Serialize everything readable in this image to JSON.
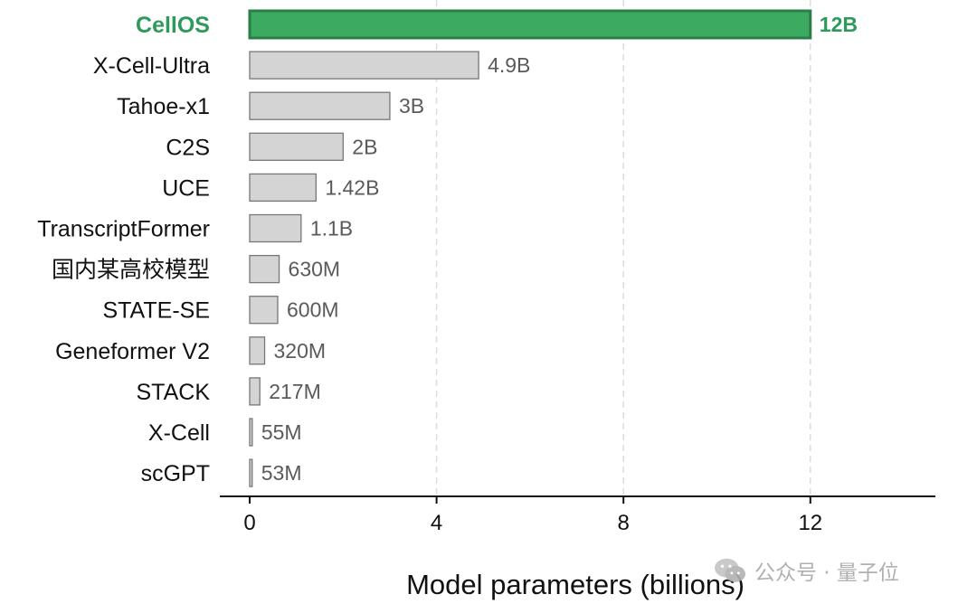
{
  "chart_data": {
    "type": "bar",
    "orientation": "horizontal",
    "categories": [
      "CellOS",
      "X-Cell-Ultra",
      "Tahoe-x1",
      "C2S",
      "UCE",
      "TranscriptFormer",
      "国内某高校模型",
      "STATE-SE",
      "Geneformer V2",
      "STACK",
      "X-Cell",
      "scGPT"
    ],
    "values": [
      12,
      4.9,
      3,
      2,
      1.42,
      1.1,
      0.63,
      0.6,
      0.32,
      0.217,
      0.055,
      0.053
    ],
    "value_labels": [
      "12B",
      "4.9B",
      "3B",
      "2B",
      "1.42B",
      "1.1B",
      "630M",
      "600M",
      "320M",
      "217M",
      "55M",
      "53M"
    ],
    "highlight_index": 0,
    "xlabel": "Model parameters (billions)",
    "ylabel": "",
    "xlim": [
      0,
      14.7
    ],
    "xticks": [
      0,
      4,
      8,
      12
    ],
    "grid": "vertical dashed",
    "colors": {
      "highlight_fill": "#3daa62",
      "highlight_edge": "#2a7d47",
      "highlight_text": "#2e9a5a",
      "bar_fill": "#d4d4d4",
      "bar_edge": "#777777",
      "grid": "#dddddd"
    }
  },
  "watermark": {
    "icon": "wechat-logo-icon",
    "text": "公众号 · 量子位"
  }
}
